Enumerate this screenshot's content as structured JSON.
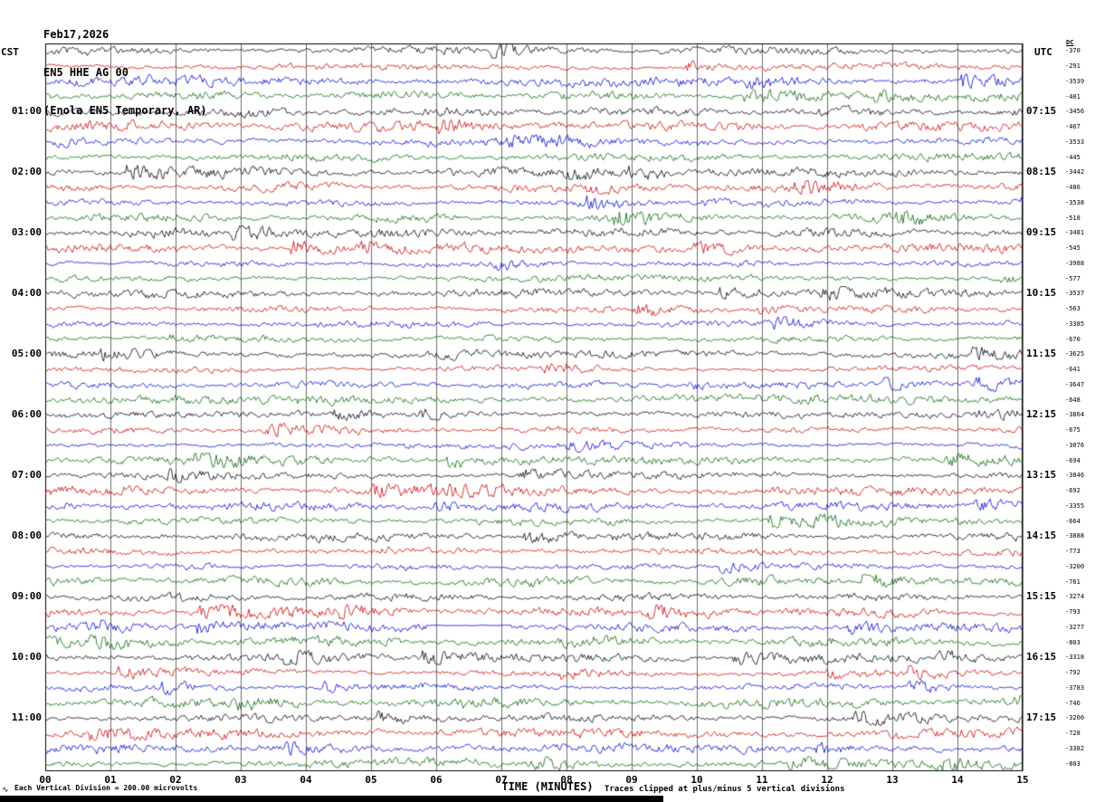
{
  "header": {
    "date": "Feb17,2026",
    "station": "EN5 HHE AG 00",
    "description": "(Enola EN5 Temporary, AR)"
  },
  "left_axis": {
    "label": "CST",
    "hours": [
      "01:00",
      "02:00",
      "03:00",
      "04:00",
      "05:00",
      "06:00",
      "07:00",
      "08:00",
      "09:00",
      "10:00",
      "11:00"
    ]
  },
  "right_axis": {
    "label": "UTC",
    "hours": [
      "07:15",
      "08:15",
      "09:15",
      "10:15",
      "11:15",
      "12:15",
      "13:15",
      "14:15",
      "15:15",
      "16:15",
      "17:15"
    ]
  },
  "dc_column": {
    "label": "DC",
    "values": [
      "-370",
      "-291",
      "-3539",
      "-401",
      "-3456",
      "-467",
      "-3533",
      "-445",
      "-3442",
      "-486",
      "-3538",
      "-518",
      "-3481",
      "-545",
      "-3988",
      "-577",
      "-3537",
      "-563",
      "-3385",
      "-670",
      "-3625",
      "-641",
      "-3647",
      "-648",
      "-3864",
      "-675",
      "-3076",
      "-694",
      "-3846",
      "-692",
      "-3355",
      "-664",
      "-3888",
      "-773",
      "-3200",
      "-761",
      "-3274",
      "-793",
      "-3277",
      "-803",
      "-3318",
      "-792",
      "-3783",
      "-746",
      "-3200",
      "-728",
      "-3382",
      "-803"
    ]
  },
  "x_axis": {
    "label": "TIME (MINUTES)",
    "ticks": [
      "00",
      "01",
      "02",
      "03",
      "04",
      "05",
      "06",
      "07",
      "08",
      "09",
      "10",
      "11",
      "12",
      "13",
      "14",
      "15"
    ]
  },
  "footer": {
    "scale_note": "Each Vertical Division =  200.00 microvolts",
    "clip_note": "Traces clipped at plus/minus 5 vertical divisions",
    "icon": "∿"
  },
  "chart_data": {
    "type": "line",
    "title": "EN5 HHE AG 00 (Enola EN5 Temporary, AR) helicorder, Feb17,2026",
    "xlabel": "TIME (MINUTES)",
    "x_range_minutes": [
      0,
      15
    ],
    "minutes_per_division": 1,
    "rows": 48,
    "row_duration_minutes": 15,
    "first_row_start_cst": "00:00",
    "last_row_end_cst": "12:00",
    "left_hour_label_rows": [
      4,
      8,
      12,
      16,
      20,
      24,
      28,
      32,
      36,
      40,
      44
    ],
    "trace_colors": [
      "#000000",
      "#cc0000",
      "#0000cc",
      "#006600"
    ],
    "color_cycle_per_row": [
      "black",
      "red",
      "blue",
      "green"
    ],
    "microvolts_per_vertical_division": 200.0,
    "clip_divisions": 5,
    "dc_offsets_reference": "dc_column.values",
    "waveform": "continuous ambient seismic noise traces (regenerated procedurally, one 15-minute trace per row)",
    "noise_seed": 20260217
  }
}
